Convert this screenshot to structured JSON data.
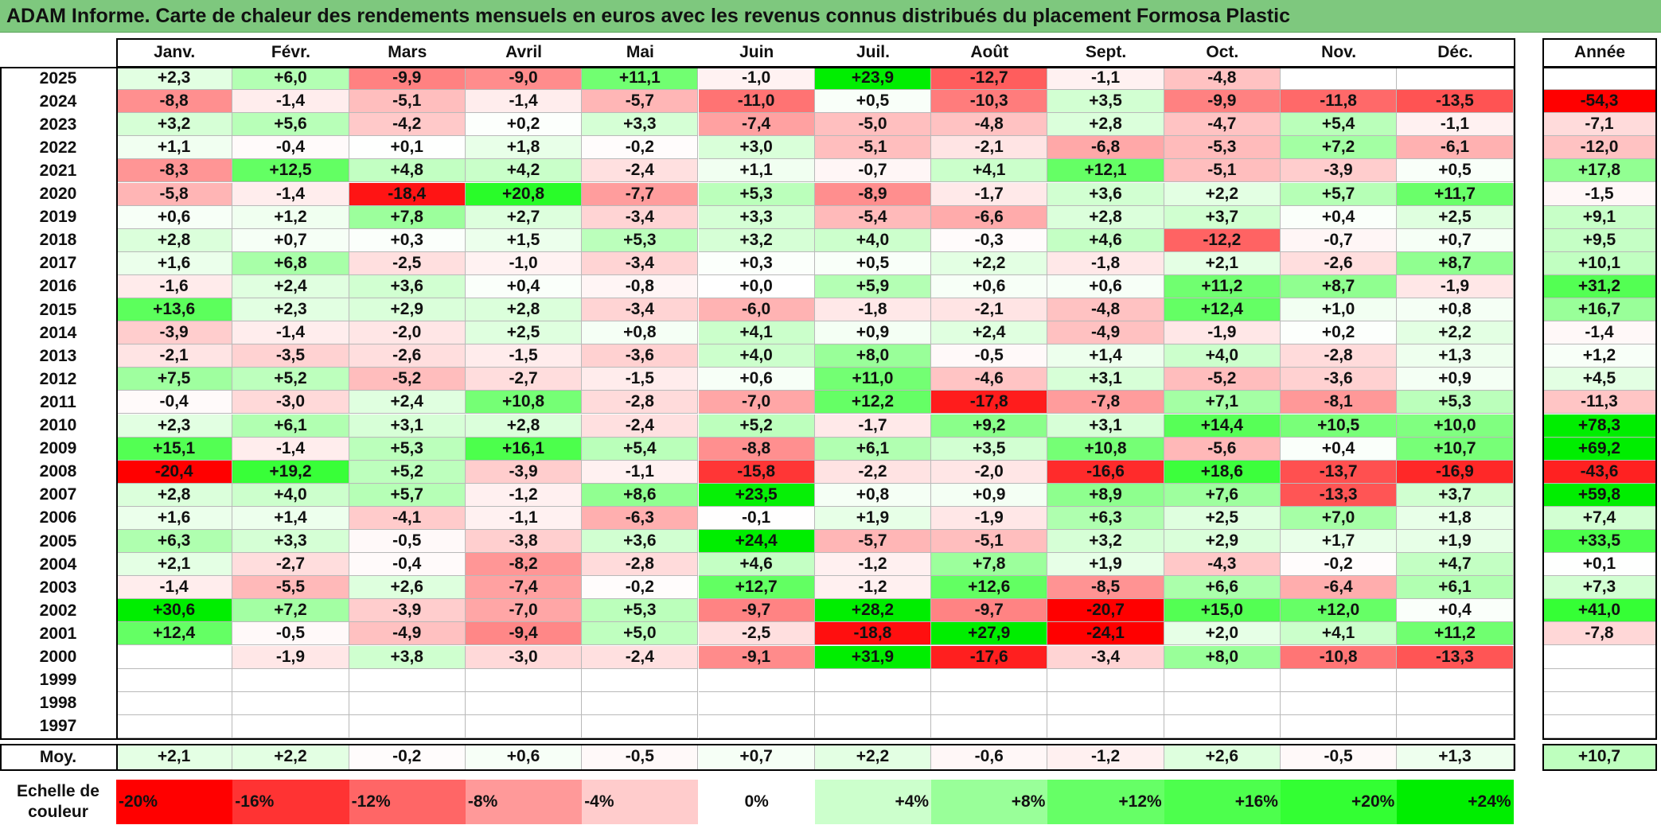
{
  "title": "ADAM Informe. Carte de chaleur des rendements mensuels en euros avec les revenus connus distribués du placement Formosa Plastic",
  "chart_data": {
    "type": "heatmap",
    "columns": [
      "Janv.",
      "Févr.",
      "Mars",
      "Avril",
      "Mai",
      "Juin",
      "Juil.",
      "Août",
      "Sept.",
      "Oct.",
      "Nov.",
      "Déc."
    ],
    "year_column_header": "Année",
    "rows": [
      {
        "year": "2025",
        "months": [
          "+2,3",
          "+6,0",
          "-9,9",
          "-9,0",
          "+11,1",
          "-1,0",
          "+23,9",
          "-12,7",
          "-1,1",
          "-4,8",
          "",
          ""
        ],
        "annual": ""
      },
      {
        "year": "2024",
        "months": [
          "-8,8",
          "-1,4",
          "-5,1",
          "-1,4",
          "-5,7",
          "-11,0",
          "+0,5",
          "-10,3",
          "+3,5",
          "-9,9",
          "-11,8",
          "-13,5"
        ],
        "annual": "-54,3"
      },
      {
        "year": "2023",
        "months": [
          "+3,2",
          "+5,6",
          "-4,2",
          "+0,2",
          "+3,3",
          "-7,4",
          "-5,0",
          "-4,8",
          "+2,8",
          "-4,7",
          "+5,4",
          "-1,1"
        ],
        "annual": "-7,1"
      },
      {
        "year": "2022",
        "months": [
          "+1,1",
          "-0,4",
          "+0,1",
          "+1,8",
          "-0,2",
          "+3,0",
          "-5,1",
          "-2,1",
          "-6,8",
          "-5,3",
          "+7,2",
          "-6,1"
        ],
        "annual": "-12,0"
      },
      {
        "year": "2021",
        "months": [
          "-8,3",
          "+12,5",
          "+4,8",
          "+4,2",
          "-2,4",
          "+1,1",
          "-0,7",
          "+4,1",
          "+12,1",
          "-5,1",
          "-3,9",
          "+0,5"
        ],
        "annual": "+17,8"
      },
      {
        "year": "2020",
        "months": [
          "-5,8",
          "-1,4",
          "-18,4",
          "+20,8",
          "-7,7",
          "+5,3",
          "-8,9",
          "-1,7",
          "+3,6",
          "+2,2",
          "+5,7",
          "+11,7"
        ],
        "annual": "-1,5"
      },
      {
        "year": "2019",
        "months": [
          "+0,6",
          "+1,2",
          "+7,8",
          "+2,7",
          "-3,4",
          "+3,3",
          "-5,4",
          "-6,6",
          "+2,8",
          "+3,7",
          "+0,4",
          "+2,5"
        ],
        "annual": "+9,1"
      },
      {
        "year": "2018",
        "months": [
          "+2,8",
          "+0,7",
          "+0,3",
          "+1,5",
          "+5,3",
          "+3,2",
          "+4,0",
          "-0,3",
          "+4,6",
          "-12,2",
          "-0,7",
          "+0,7"
        ],
        "annual": "+9,5"
      },
      {
        "year": "2017",
        "months": [
          "+1,6",
          "+6,8",
          "-2,5",
          "-1,0",
          "-3,4",
          "+0,3",
          "+0,5",
          "+2,2",
          "-1,8",
          "+2,1",
          "-2,6",
          "+8,7"
        ],
        "annual": "+10,1"
      },
      {
        "year": "2016",
        "months": [
          "-1,6",
          "+2,4",
          "+3,6",
          "+0,4",
          "-0,8",
          "+0,0",
          "+5,9",
          "+0,6",
          "+0,6",
          "+11,2",
          "+8,7",
          "-1,9"
        ],
        "annual": "+31,2"
      },
      {
        "year": "2015",
        "months": [
          "+13,6",
          "+2,3",
          "+2,9",
          "+2,8",
          "-3,4",
          "-6,0",
          "-1,8",
          "-2,1",
          "-4,8",
          "+12,4",
          "+1,0",
          "+0,8"
        ],
        "annual": "+16,7"
      },
      {
        "year": "2014",
        "months": [
          "-3,9",
          "-1,4",
          "-2,0",
          "+2,5",
          "+0,8",
          "+4,1",
          "+0,9",
          "+2,4",
          "-4,9",
          "-1,9",
          "+0,2",
          "+2,2"
        ],
        "annual": "-1,4"
      },
      {
        "year": "2013",
        "months": [
          "-2,1",
          "-3,5",
          "-2,6",
          "-1,5",
          "-3,6",
          "+4,0",
          "+8,0",
          "-0,5",
          "+1,4",
          "+4,0",
          "-2,8",
          "+1,3"
        ],
        "annual": "+1,2"
      },
      {
        "year": "2012",
        "months": [
          "+7,5",
          "+5,2",
          "-5,2",
          "-2,7",
          "-1,5",
          "+0,6",
          "+11,0",
          "-4,6",
          "+3,1",
          "-5,2",
          "-3,6",
          "+0,9"
        ],
        "annual": "+4,5"
      },
      {
        "year": "2011",
        "months": [
          "-0,4",
          "-3,0",
          "+2,4",
          "+10,8",
          "-2,8",
          "-7,0",
          "+12,2",
          "-17,8",
          "-7,8",
          "+7,1",
          "-8,1",
          "+5,3"
        ],
        "annual": "-11,3"
      },
      {
        "year": "2010",
        "months": [
          "+2,3",
          "+6,1",
          "+3,1",
          "+2,8",
          "-2,4",
          "+5,2",
          "-1,7",
          "+9,2",
          "+3,1",
          "+14,4",
          "+10,5",
          "+10,0"
        ],
        "annual": "+78,3"
      },
      {
        "year": "2009",
        "months": [
          "+15,1",
          "-1,4",
          "+5,3",
          "+16,1",
          "+5,4",
          "-8,8",
          "+6,1",
          "+3,5",
          "+10,8",
          "-5,6",
          "+0,4",
          "+10,7"
        ],
        "annual": "+69,2"
      },
      {
        "year": "2008",
        "months": [
          "-20,4",
          "+19,2",
          "+5,2",
          "-3,9",
          "-1,1",
          "-15,8",
          "-2,2",
          "-2,0",
          "-16,6",
          "+18,6",
          "-13,7",
          "-16,9"
        ],
        "annual": "-43,6"
      },
      {
        "year": "2007",
        "months": [
          "+2,8",
          "+4,0",
          "+5,7",
          "-1,2",
          "+8,6",
          "+23,5",
          "+0,8",
          "+0,9",
          "+8,9",
          "+7,6",
          "-13,3",
          "+3,7"
        ],
        "annual": "+59,8"
      },
      {
        "year": "2006",
        "months": [
          "+1,6",
          "+1,4",
          "-4,1",
          "-1,1",
          "-6,3",
          "-0,1",
          "+1,9",
          "-1,9",
          "+6,3",
          "+2,5",
          "+7,0",
          "+1,8"
        ],
        "annual": "+7,4"
      },
      {
        "year": "2005",
        "months": [
          "+6,3",
          "+3,3",
          "-0,5",
          "-3,8",
          "+3,6",
          "+24,4",
          "-5,7",
          "-5,1",
          "+3,2",
          "+2,9",
          "+1,7",
          "+1,9"
        ],
        "annual": "+33,5"
      },
      {
        "year": "2004",
        "months": [
          "+2,1",
          "-2,7",
          "-0,4",
          "-8,2",
          "-2,8",
          "+4,6",
          "-1,2",
          "+7,8",
          "+1,9",
          "-4,3",
          "-0,2",
          "+4,7"
        ],
        "annual": "+0,1"
      },
      {
        "year": "2003",
        "months": [
          "-1,4",
          "-5,5",
          "+2,6",
          "-7,4",
          "-0,2",
          "+12,7",
          "-1,2",
          "+12,6",
          "-8,5",
          "+6,6",
          "-6,4",
          "+6,1"
        ],
        "annual": "+7,3"
      },
      {
        "year": "2002",
        "months": [
          "+30,6",
          "+7,2",
          "-3,9",
          "-7,0",
          "+5,3",
          "-9,7",
          "+28,2",
          "-9,7",
          "-20,7",
          "+15,0",
          "+12,0",
          "+0,4"
        ],
        "annual": "+41,0"
      },
      {
        "year": "2001",
        "months": [
          "+12,4",
          "-0,5",
          "-4,9",
          "-9,4",
          "+5,0",
          "-2,5",
          "-18,8",
          "+27,9",
          "-24,1",
          "+2,0",
          "+4,1",
          "+11,2"
        ],
        "annual": "-7,8"
      },
      {
        "year": "2000",
        "months": [
          "",
          "-1,9",
          "+3,8",
          "-3,0",
          "-2,4",
          "-9,1",
          "+31,9",
          "-17,6",
          "-3,4",
          "+8,0",
          "-10,8",
          "-13,3"
        ],
        "annual": ""
      },
      {
        "year": "1999",
        "months": [
          "",
          "",
          "",
          "",
          "",
          "",
          "",
          "",
          "",
          "",
          "",
          ""
        ],
        "annual": ""
      },
      {
        "year": "1998",
        "months": [
          "",
          "",
          "",
          "",
          "",
          "",
          "",
          "",
          "",
          "",
          "",
          ""
        ],
        "annual": ""
      },
      {
        "year": "1997",
        "months": [
          "",
          "",
          "",
          "",
          "",
          "",
          "",
          "",
          "",
          "",
          "",
          ""
        ],
        "annual": ""
      }
    ],
    "average": {
      "label": "Moy.",
      "months": [
        "+2,1",
        "+2,2",
        "-0,2",
        "+0,6",
        "-0,5",
        "+0,7",
        "+2,2",
        "-0,6",
        "-1,2",
        "+2,6",
        "-0,5",
        "+1,3"
      ],
      "annual": "+10,7"
    },
    "color_scale": {
      "label_line1": "Echelle de",
      "label_line2": "couleur",
      "stops": [
        {
          "label": "-20%",
          "value": -20,
          "color": "#ff0000"
        },
        {
          "label": "-16%",
          "value": -16,
          "color": "#ff3333"
        },
        {
          "label": "-12%",
          "value": -12,
          "color": "#ff6666"
        },
        {
          "label": "-8%",
          "value": -8,
          "color": "#ff9999"
        },
        {
          "label": "-4%",
          "value": -4,
          "color": "#ffcccc"
        },
        {
          "label": "0%",
          "value": 0,
          "color": "#ffffff"
        },
        {
          "label": "+4%",
          "value": 4,
          "color": "#ccffcc"
        },
        {
          "label": "+8%",
          "value": 8,
          "color": "#99ff99"
        },
        {
          "label": "+12%",
          "value": 12,
          "color": "#66ff66"
        },
        {
          "label": "+16%",
          "value": 16,
          "color": "#4dff4d"
        },
        {
          "label": "+20%",
          "value": 20,
          "color": "#33ff33"
        },
        {
          "label": "+24%",
          "value": 24,
          "color": "#00ee00"
        }
      ]
    },
    "annual_scale": {
      "min": -50,
      "max": 50
    }
  }
}
